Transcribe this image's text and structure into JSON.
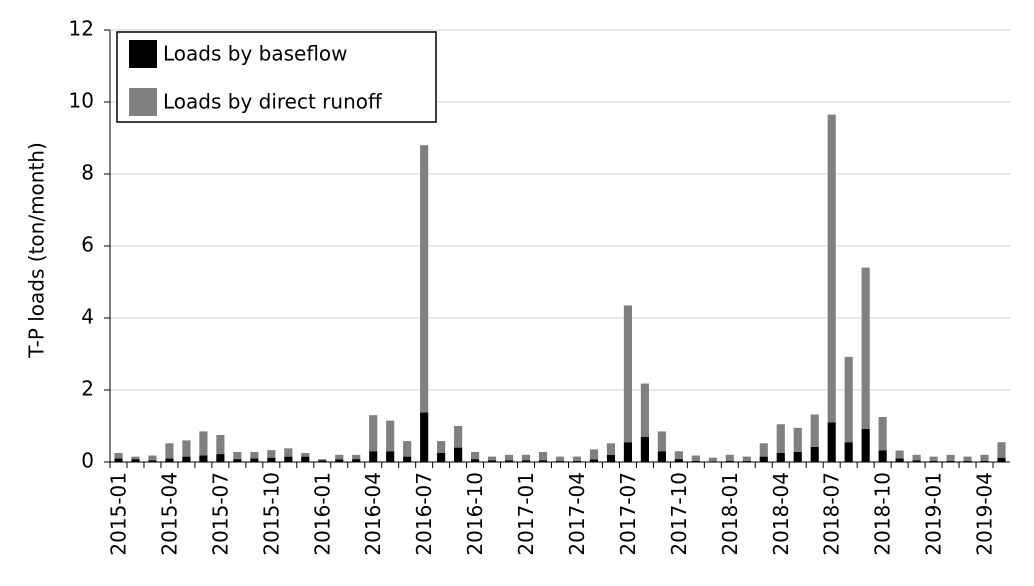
{
  "chart_data": {
    "type": "bar",
    "stacked": true,
    "ylabel": "T-P loads (ton/month)",
    "categories": [
      "2015-01",
      null,
      null,
      "2015-04",
      null,
      null,
      "2015-07",
      null,
      null,
      "2015-10",
      null,
      null,
      "2016-01",
      null,
      null,
      "2016-04",
      null,
      null,
      "2016-07",
      null,
      null,
      "2016-10",
      null,
      null,
      "2017-01",
      null,
      null,
      "2017-04",
      null,
      null,
      "2017-07",
      null,
      null,
      "2017-10",
      null,
      null,
      "2018-01",
      null,
      null,
      "2018-04",
      null,
      null,
      "2018-07",
      null,
      null,
      "2018-10",
      null,
      null,
      "2019-01",
      null,
      null,
      "2019-04",
      null
    ],
    "series": [
      {
        "name": "Loads by baseflow",
        "color": "#000000",
        "values": [
          0.1,
          0.08,
          0.05,
          0.1,
          0.15,
          0.18,
          0.22,
          0.08,
          0.1,
          0.12,
          0.15,
          0.15,
          0.05,
          0.07,
          0.08,
          0.3,
          0.3,
          0.15,
          1.38,
          0.25,
          0.4,
          0.08,
          0.05,
          0.05,
          0.05,
          0.05,
          0.03,
          0.03,
          0.07,
          0.2,
          0.55,
          0.7,
          0.3,
          0.08,
          0.03,
          0.02,
          0.03,
          0.03,
          0.15,
          0.25,
          0.28,
          0.42,
          1.1,
          0.55,
          0.92,
          0.32,
          0.1,
          0.05,
          0.03,
          0.03,
          0.03,
          0.03,
          0.12
        ]
      },
      {
        "name": "Loads by direct runoff",
        "color": "#808080",
        "values": [
          0.15,
          0.07,
          0.13,
          0.42,
          0.45,
          0.67,
          0.53,
          0.2,
          0.18,
          0.21,
          0.23,
          0.1,
          0.03,
          0.13,
          0.12,
          1.0,
          0.85,
          0.43,
          7.42,
          0.33,
          0.6,
          0.2,
          0.1,
          0.15,
          0.15,
          0.23,
          0.12,
          0.12,
          0.28,
          0.32,
          3.8,
          1.48,
          0.55,
          0.22,
          0.15,
          0.1,
          0.17,
          0.12,
          0.37,
          0.8,
          0.67,
          0.9,
          8.55,
          2.37,
          4.48,
          0.93,
          0.22,
          0.15,
          0.12,
          0.17,
          0.12,
          0.17,
          0.43
        ]
      }
    ],
    "ylim": [
      0,
      12
    ],
    "yticks": [
      0,
      2,
      4,
      6,
      8,
      10,
      12
    ],
    "grid": true,
    "legend": "upper left"
  }
}
